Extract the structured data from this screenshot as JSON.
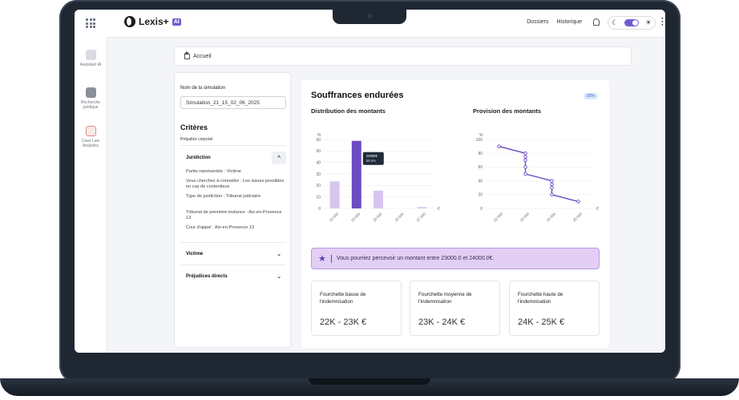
{
  "header": {
    "logo_text": "Lexis+",
    "logo_badge": "AI",
    "nav": [
      "Dossiers",
      "Historique"
    ],
    "theme_moon": "☾",
    "theme_sun": "☀"
  },
  "rail": {
    "items": [
      {
        "label": "Assistant IA"
      },
      {
        "label": "Recherche juridique"
      },
      {
        "label": "Case Law Analytics"
      }
    ]
  },
  "breadcrumb": {
    "label": "Accueil"
  },
  "form": {
    "sim_label": "Nom de la simulation",
    "sim_value": "Simulation_21_15_02_06_2025",
    "criteria_title": "Critères",
    "criteria_sub": "Préjudice corporel",
    "jurisdiction_title": "Juridiction",
    "jurisdiction_lines": [
      "Partie représentée : Victime",
      "Vous cherchez à connaître : Les issues possibles en cas de contentieux",
      "Type de juridiction : Tribunal judiciaire",
      "Tribunal de première instance : Aix-en-Provence 13",
      "Cour d'appel : Aix-en-Provence 13"
    ],
    "victim_title": "Victime",
    "direct_title": "Préjudices directs"
  },
  "main": {
    "title": "Souffrances endurées",
    "badge": "93%",
    "banner": "Vous pourriez percevoir un montant entre 23000.0 et 24000.0€.",
    "cards": [
      {
        "title": "Fourchette basse de l'indemnisation",
        "value": "22K - 23K €"
      },
      {
        "title": "Fourchette moyenne de l'indemnisation",
        "value": "23K - 24K €"
      },
      {
        "title": "Fourchette haute de l'indemnisation",
        "value": "24K - 25K €"
      }
    ]
  },
  "chart_data": [
    {
      "type": "bar",
      "title": "Distribution des montants",
      "ylabel": "%",
      "xlabel": "€",
      "categories": [
        "22 000",
        "23 000",
        "24 000",
        "25 000",
        "27 000"
      ],
      "values": [
        23.5,
        58.8,
        15.5,
        0,
        1.2
      ],
      "highlight_index": 1,
      "ylim": [
        0,
        60
      ],
      "yticks": [
        0,
        10,
        20,
        30,
        40,
        50,
        60
      ],
      "tooltip": {
        "amount": "23000€",
        "percent": "58.8%"
      },
      "colors": {
        "bar": "#d6c6ef",
        "highlight": "#6d4bc3"
      }
    },
    {
      "type": "line",
      "title": "Provision des montants",
      "ylabel": "%",
      "xlabel": "€",
      "x_ticks": [
        "22 000",
        "23 000",
        "24 000",
        "25 000"
      ],
      "x": [
        22000,
        23000,
        23000,
        23000,
        23000,
        23000,
        24000,
        24000,
        24000,
        24000,
        25000
      ],
      "y": [
        90,
        80,
        75,
        70,
        60,
        50,
        40,
        35,
        30,
        20,
        10
      ],
      "ylim": [
        0,
        100
      ],
      "yticks": [
        0,
        20,
        40,
        60,
        80,
        100
      ],
      "xlim": [
        21500,
        25500
      ],
      "color": "#6d4bc3"
    }
  ]
}
